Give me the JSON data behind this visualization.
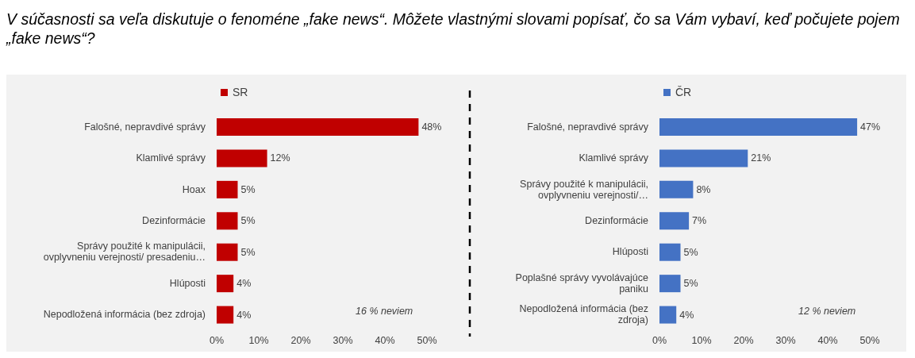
{
  "chart_data": [
    {
      "type": "bar",
      "orientation": "horizontal",
      "title": "V súčasnosti sa veľa diskutuje o fenoméne „fake news“. Môžete vlastnými slovami popísať, čo sa Vám vybaví, keď počujete pojem „fake news“?",
      "categories": [
        "Falošné, nepravdivé správy",
        "Klamlivé správy",
        "Hoax",
        "Dezinformácie",
        "Správy použité k manipulácii, ovplyvneniu verejnosti/ presadeniu…",
        "Hlúposti",
        "Nepodložená informácia (bez zdroja)"
      ],
      "series": [
        {
          "name": "SR",
          "color": "#c00000",
          "values": [
            48,
            12,
            5,
            5,
            5,
            4,
            4
          ],
          "value_labels": [
            "48%",
            "12%",
            "5%",
            "5%",
            "5%",
            "4%",
            "4%"
          ]
        }
      ],
      "xlim": [
        0,
        50
      ],
      "xticks": [
        {
          "value": 0,
          "label": "0%"
        },
        {
          "value": 10,
          "label": "10%"
        },
        {
          "value": 20,
          "label": "20%"
        },
        {
          "value": 30,
          "label": "30%"
        },
        {
          "value": 40,
          "label": "40%"
        },
        {
          "value": 50,
          "label": "50%"
        }
      ],
      "annotations": [
        "16 % neviem"
      ],
      "legend": "top",
      "grid": false
    },
    {
      "type": "bar",
      "orientation": "horizontal",
      "categories": [
        "Falošné, nepravdivé správy",
        "Klamlivé správy",
        "Správy použité k manipulácii, ovplyvneniu verejnosti/…",
        "Dezinformácie",
        "Hlúposti",
        "Poplašné správy vyvolávajúce paniku",
        "Nepodložená informácia (bez zdroja)"
      ],
      "series": [
        {
          "name": "ČR",
          "color": "#4472c4",
          "values": [
            47,
            21,
            8,
            7,
            5,
            5,
            4
          ],
          "value_labels": [
            "47%",
            "21%",
            "8%",
            "7%",
            "5%",
            "5%",
            "4%"
          ]
        }
      ],
      "xlim": [
        0,
        50
      ],
      "xticks": [
        {
          "value": 0,
          "label": "0%"
        },
        {
          "value": 10,
          "label": "10%"
        },
        {
          "value": 20,
          "label": "20%"
        },
        {
          "value": 30,
          "label": "30%"
        },
        {
          "value": 40,
          "label": "40%"
        },
        {
          "value": 50,
          "label": "50%"
        }
      ],
      "annotations": [
        "12 % neviem"
      ],
      "legend": "top",
      "grid": false
    }
  ]
}
